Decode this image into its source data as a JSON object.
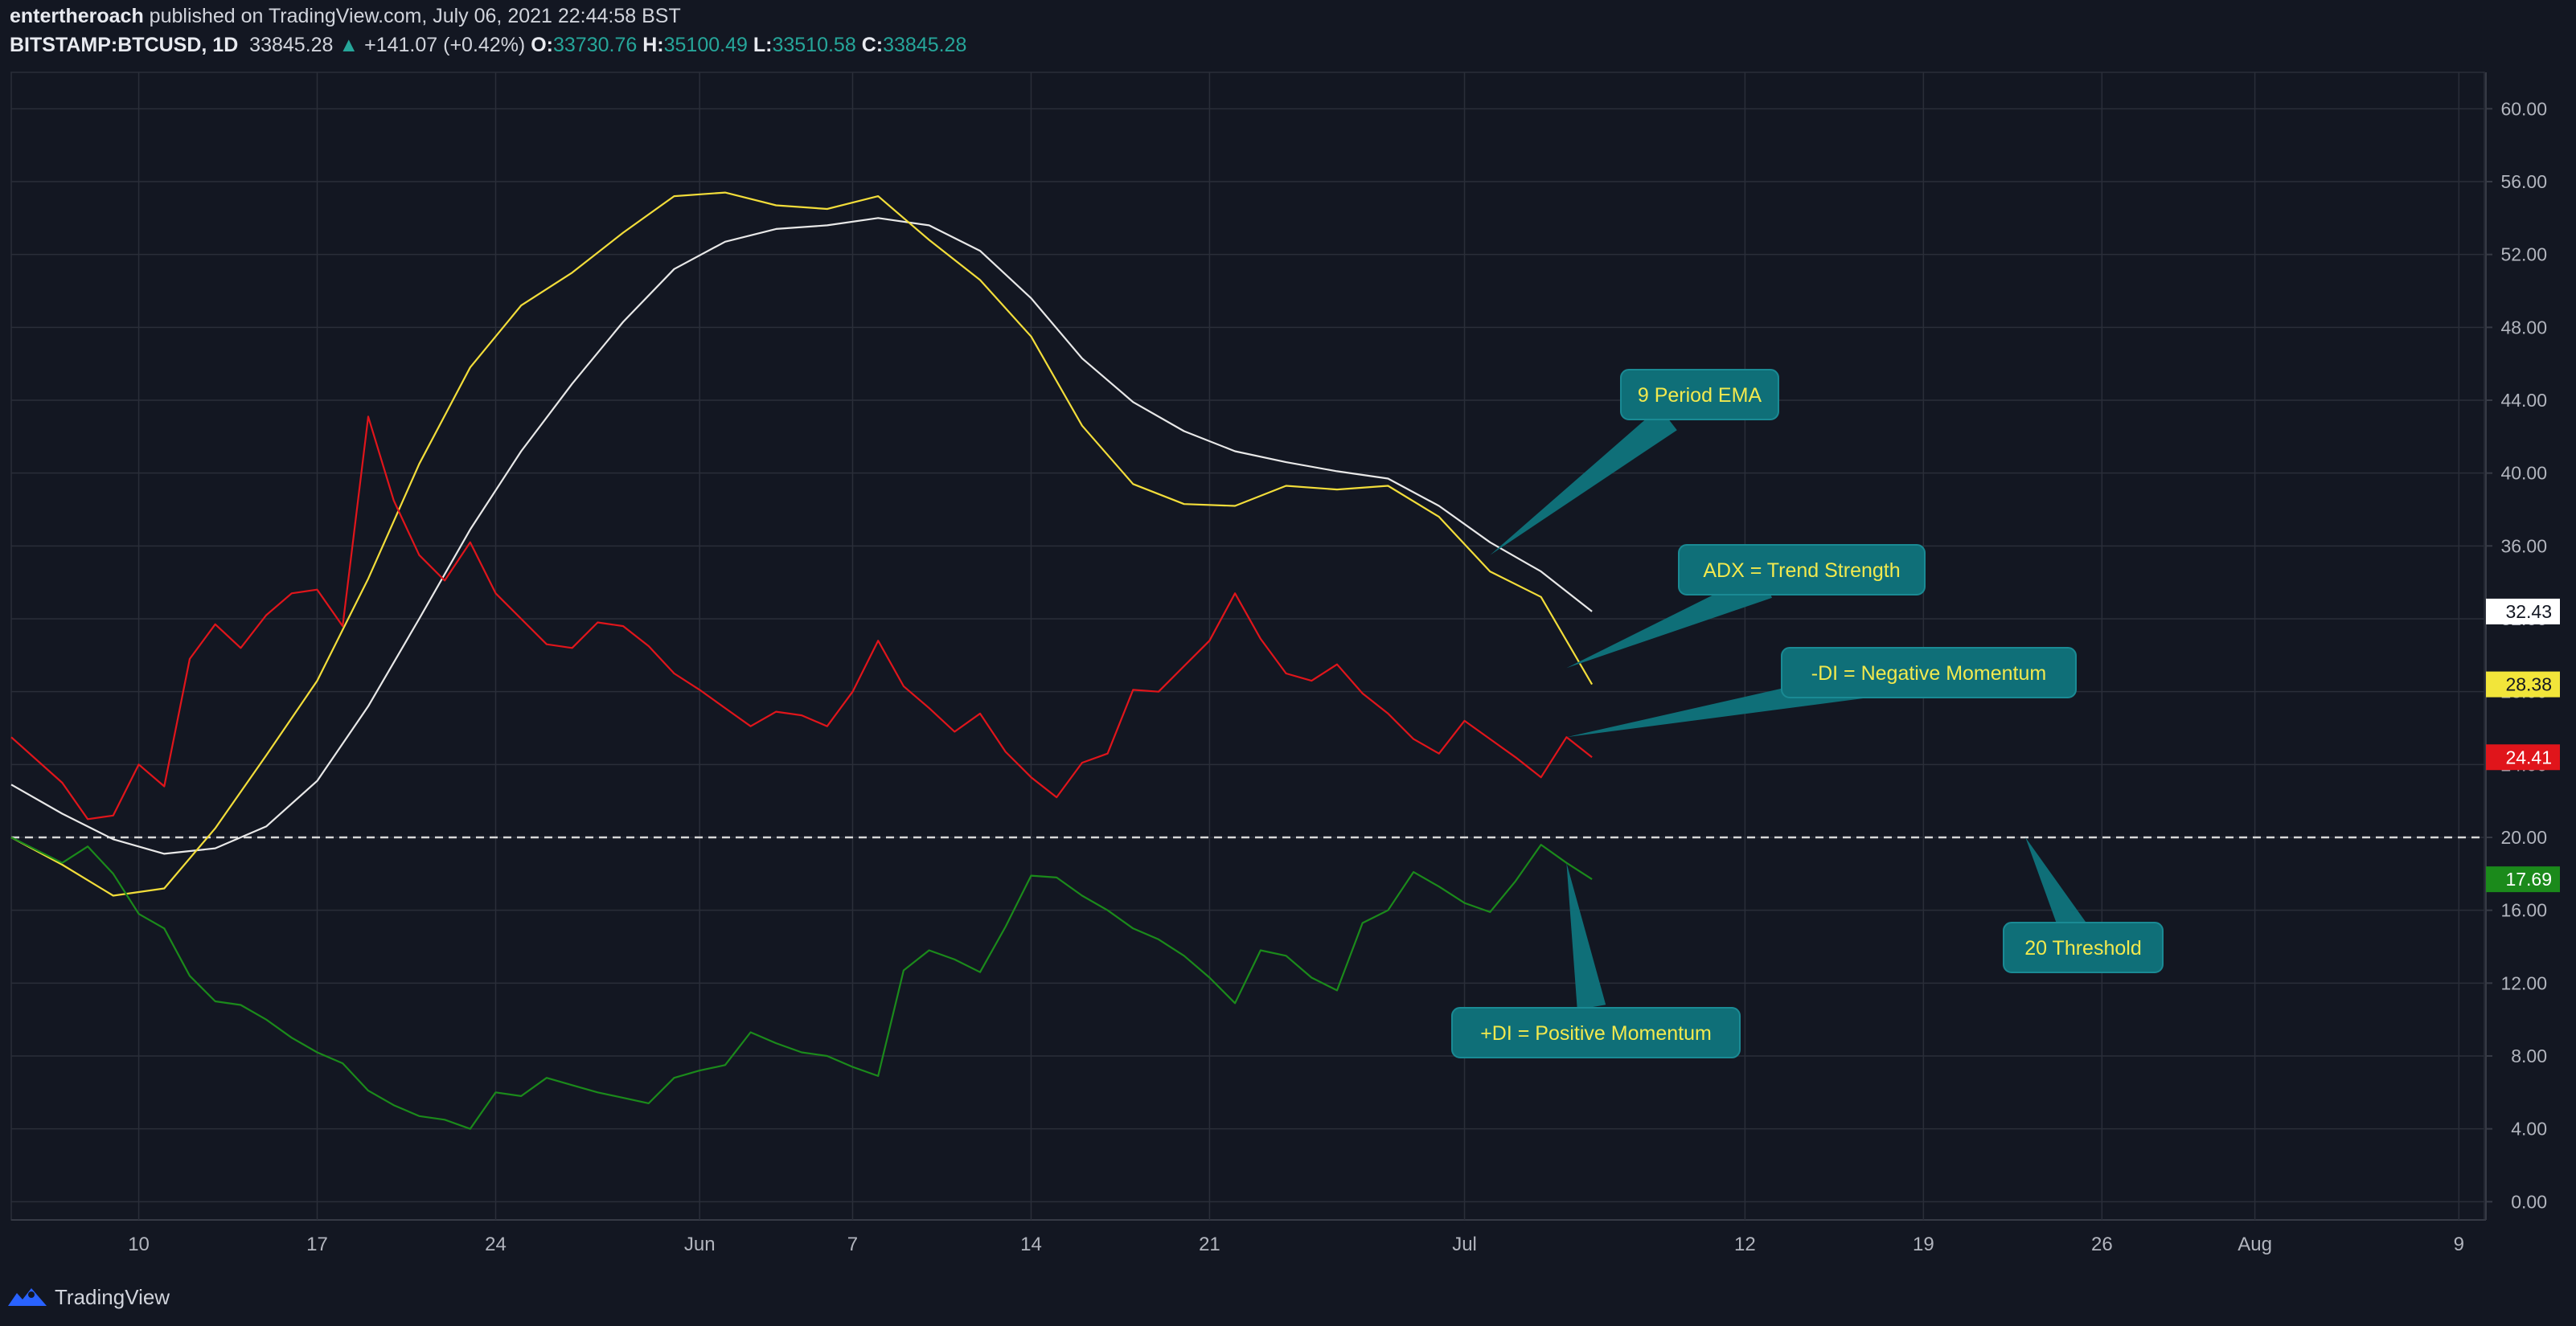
{
  "header": {
    "author": "entertheroach",
    "published_text": "published on TradingView.com, July 06, 2021 22:44:58 BST",
    "symbol": "BITSTAMP:BTCUSD, 1D",
    "last": "33845.28",
    "change_arrow": "▲",
    "change": "+141.07 (+0.42%)",
    "o_label": "O:",
    "o_value": "33730.76",
    "h_label": "H:",
    "h_value": "35100.49",
    "l_label": "L:",
    "l_value": "33510.58",
    "c_label": "C:",
    "c_value": "33845.28"
  },
  "footer": {
    "brand": "TradingView",
    "logo_icon": "tradingview-logo-icon"
  },
  "colors": {
    "background": "#131722",
    "grid": "#2a2e39",
    "text": "#b2b5be",
    "ema": "#e8e8e8",
    "adx": "#f2dd3a",
    "minus_di": "#e0151b",
    "plus_di": "#1b8a1b",
    "threshold": "#d8d8d8",
    "callout_bg": "#0f6f78",
    "callout_text": "#f2e94e"
  },
  "chart_data": {
    "type": "line",
    "x_axis": {
      "ticks": [
        {
          "date": "2021-05-10",
          "label": "10"
        },
        {
          "date": "2021-05-17",
          "label": "17"
        },
        {
          "date": "2021-05-24",
          "label": "24"
        },
        {
          "date": "2021-06-01",
          "label": "Jun"
        },
        {
          "date": "2021-06-07",
          "label": "7"
        },
        {
          "date": "2021-06-14",
          "label": "14"
        },
        {
          "date": "2021-06-21",
          "label": "21"
        },
        {
          "date": "2021-07-01",
          "label": "Jul"
        },
        {
          "date": "2021-07-12",
          "label": "12"
        },
        {
          "date": "2021-07-19",
          "label": "19"
        },
        {
          "date": "2021-07-26",
          "label": "26"
        },
        {
          "date": "2021-08-01",
          "label": "Aug"
        },
        {
          "date": "2021-08-09",
          "label": "9"
        }
      ],
      "range": [
        "2021-05-05",
        "2021-08-10"
      ]
    },
    "y_axis": {
      "ticks": [
        "0.00",
        "4.00",
        "8.00",
        "12.00",
        "16.00",
        "20.00",
        "24.00",
        "28.00",
        "32.00",
        "36.00",
        "40.00",
        "44.00",
        "48.00",
        "52.00",
        "56.00",
        "60.00"
      ],
      "range": [
        -1,
        62
      ]
    },
    "grid": true,
    "threshold": {
      "value": 20,
      "style": "dashed"
    },
    "series": [
      {
        "key": "ema",
        "color_key": "ema",
        "last_label": "32.43",
        "points": [
          [
            "2021-05-05",
            22.9
          ],
          [
            "2021-05-07",
            21.3
          ],
          [
            "2021-05-09",
            19.9
          ],
          [
            "2021-05-11",
            19.1
          ],
          [
            "2021-05-13",
            19.4
          ],
          [
            "2021-05-15",
            20.6
          ],
          [
            "2021-05-17",
            23.1
          ],
          [
            "2021-05-19",
            27.2
          ],
          [
            "2021-05-21",
            32.0
          ],
          [
            "2021-05-23",
            36.9
          ],
          [
            "2021-05-25",
            41.2
          ],
          [
            "2021-05-27",
            44.9
          ],
          [
            "2021-05-29",
            48.3
          ],
          [
            "2021-05-31",
            51.2
          ],
          [
            "2021-06-02",
            52.7
          ],
          [
            "2021-06-04",
            53.4
          ],
          [
            "2021-06-06",
            53.6
          ],
          [
            "2021-06-08",
            54.0
          ],
          [
            "2021-06-10",
            53.6
          ],
          [
            "2021-06-12",
            52.2
          ],
          [
            "2021-06-14",
            49.6
          ],
          [
            "2021-06-16",
            46.3
          ],
          [
            "2021-06-18",
            43.9
          ],
          [
            "2021-06-20",
            42.3
          ],
          [
            "2021-06-22",
            41.2
          ],
          [
            "2021-06-24",
            40.6
          ],
          [
            "2021-06-26",
            40.1
          ],
          [
            "2021-06-28",
            39.7
          ],
          [
            "2021-06-30",
            38.2
          ],
          [
            "2021-07-02",
            36.2
          ],
          [
            "2021-07-04",
            34.6
          ],
          [
            "2021-07-06",
            32.4
          ]
        ]
      },
      {
        "key": "adx",
        "color_key": "adx",
        "last_label": "28.38",
        "points": [
          [
            "2021-05-05",
            20.0
          ],
          [
            "2021-05-07",
            18.5
          ],
          [
            "2021-05-09",
            16.8
          ],
          [
            "2021-05-11",
            17.2
          ],
          [
            "2021-05-13",
            20.5
          ],
          [
            "2021-05-15",
            24.5
          ],
          [
            "2021-05-17",
            28.6
          ],
          [
            "2021-05-19",
            34.2
          ],
          [
            "2021-05-21",
            40.5
          ],
          [
            "2021-05-23",
            45.8
          ],
          [
            "2021-05-25",
            49.2
          ],
          [
            "2021-05-27",
            51.0
          ],
          [
            "2021-05-29",
            53.2
          ],
          [
            "2021-05-31",
            55.2
          ],
          [
            "2021-06-02",
            55.4
          ],
          [
            "2021-06-04",
            54.7
          ],
          [
            "2021-06-06",
            54.5
          ],
          [
            "2021-06-08",
            55.2
          ],
          [
            "2021-06-10",
            52.8
          ],
          [
            "2021-06-12",
            50.6
          ],
          [
            "2021-06-14",
            47.5
          ],
          [
            "2021-06-16",
            42.6
          ],
          [
            "2021-06-18",
            39.4
          ],
          [
            "2021-06-20",
            38.3
          ],
          [
            "2021-06-22",
            38.2
          ],
          [
            "2021-06-24",
            39.3
          ],
          [
            "2021-06-26",
            39.1
          ],
          [
            "2021-06-28",
            39.3
          ],
          [
            "2021-06-30",
            37.6
          ],
          [
            "2021-07-02",
            34.6
          ],
          [
            "2021-07-04",
            33.2
          ],
          [
            "2021-07-06",
            28.4
          ]
        ]
      },
      {
        "key": "minus_di",
        "color_key": "minus_di",
        "last_label": "24.41",
        "points": [
          [
            "2021-05-05",
            25.5
          ],
          [
            "2021-05-07",
            23.0
          ],
          [
            "2021-05-08",
            21.0
          ],
          [
            "2021-05-09",
            21.2
          ],
          [
            "2021-05-10",
            24.0
          ],
          [
            "2021-05-11",
            22.8
          ],
          [
            "2021-05-12",
            29.8
          ],
          [
            "2021-05-13",
            31.7
          ],
          [
            "2021-05-14",
            30.4
          ],
          [
            "2021-05-15",
            32.2
          ],
          [
            "2021-05-16",
            33.4
          ],
          [
            "2021-05-17",
            33.6
          ],
          [
            "2021-05-18",
            31.6
          ],
          [
            "2021-05-19",
            43.1
          ],
          [
            "2021-05-20",
            38.5
          ],
          [
            "2021-05-21",
            35.5
          ],
          [
            "2021-05-22",
            34.1
          ],
          [
            "2021-05-23",
            36.2
          ],
          [
            "2021-05-24",
            33.4
          ],
          [
            "2021-05-25",
            32.0
          ],
          [
            "2021-05-26",
            30.6
          ],
          [
            "2021-05-27",
            30.4
          ],
          [
            "2021-05-28",
            31.8
          ],
          [
            "2021-05-29",
            31.6
          ],
          [
            "2021-05-30",
            30.5
          ],
          [
            "2021-05-31",
            29.0
          ],
          [
            "2021-06-01",
            28.1
          ],
          [
            "2021-06-02",
            27.1
          ],
          [
            "2021-06-03",
            26.1
          ],
          [
            "2021-06-04",
            26.9
          ],
          [
            "2021-06-05",
            26.7
          ],
          [
            "2021-06-06",
            26.1
          ],
          [
            "2021-06-07",
            28.0
          ],
          [
            "2021-06-08",
            30.8
          ],
          [
            "2021-06-09",
            28.3
          ],
          [
            "2021-06-10",
            27.1
          ],
          [
            "2021-06-11",
            25.8
          ],
          [
            "2021-06-12",
            26.8
          ],
          [
            "2021-06-13",
            24.7
          ],
          [
            "2021-06-14",
            23.3
          ],
          [
            "2021-06-15",
            22.2
          ],
          [
            "2021-06-16",
            24.1
          ],
          [
            "2021-06-17",
            24.6
          ],
          [
            "2021-06-18",
            28.1
          ],
          [
            "2021-06-19",
            28.0
          ],
          [
            "2021-06-20",
            29.4
          ],
          [
            "2021-06-21",
            30.8
          ],
          [
            "2021-06-22",
            33.4
          ],
          [
            "2021-06-23",
            30.9
          ],
          [
            "2021-06-24",
            29.0
          ],
          [
            "2021-06-25",
            28.6
          ],
          [
            "2021-06-26",
            29.5
          ],
          [
            "2021-06-27",
            27.9
          ],
          [
            "2021-06-28",
            26.8
          ],
          [
            "2021-06-29",
            25.4
          ],
          [
            "2021-06-30",
            24.6
          ],
          [
            "2021-07-01",
            26.4
          ],
          [
            "2021-07-02",
            25.4
          ],
          [
            "2021-07-03",
            24.4
          ],
          [
            "2021-07-04",
            23.3
          ],
          [
            "2021-07-05",
            25.5
          ],
          [
            "2021-07-06",
            24.4
          ]
        ]
      },
      {
        "key": "plus_di",
        "color_key": "plus_di",
        "last_label": "17.69",
        "points": [
          [
            "2021-05-05",
            20.0
          ],
          [
            "2021-05-07",
            18.6
          ],
          [
            "2021-05-08",
            19.5
          ],
          [
            "2021-05-09",
            18.0
          ],
          [
            "2021-05-10",
            15.8
          ],
          [
            "2021-05-11",
            15.0
          ],
          [
            "2021-05-12",
            12.4
          ],
          [
            "2021-05-13",
            11.0
          ],
          [
            "2021-05-14",
            10.8
          ],
          [
            "2021-05-15",
            10.0
          ],
          [
            "2021-05-16",
            9.0
          ],
          [
            "2021-05-17",
            8.2
          ],
          [
            "2021-05-18",
            7.6
          ],
          [
            "2021-05-19",
            6.1
          ],
          [
            "2021-05-20",
            5.3
          ],
          [
            "2021-05-21",
            4.7
          ],
          [
            "2021-05-22",
            4.5
          ],
          [
            "2021-05-23",
            4.0
          ],
          [
            "2021-05-24",
            6.0
          ],
          [
            "2021-05-25",
            5.8
          ],
          [
            "2021-05-26",
            6.8
          ],
          [
            "2021-05-27",
            6.4
          ],
          [
            "2021-05-28",
            6.0
          ],
          [
            "2021-05-29",
            5.7
          ],
          [
            "2021-05-30",
            5.4
          ],
          [
            "2021-05-31",
            6.8
          ],
          [
            "2021-06-01",
            7.2
          ],
          [
            "2021-06-02",
            7.5
          ],
          [
            "2021-06-03",
            9.3
          ],
          [
            "2021-06-04",
            8.7
          ],
          [
            "2021-06-05",
            8.2
          ],
          [
            "2021-06-06",
            8.0
          ],
          [
            "2021-06-07",
            7.4
          ],
          [
            "2021-06-08",
            6.9
          ],
          [
            "2021-06-09",
            12.7
          ],
          [
            "2021-06-10",
            13.8
          ],
          [
            "2021-06-11",
            13.3
          ],
          [
            "2021-06-12",
            12.6
          ],
          [
            "2021-06-13",
            15.1
          ],
          [
            "2021-06-14",
            17.9
          ],
          [
            "2021-06-15",
            17.8
          ],
          [
            "2021-06-16",
            16.8
          ],
          [
            "2021-06-17",
            16.0
          ],
          [
            "2021-06-18",
            15.0
          ],
          [
            "2021-06-19",
            14.4
          ],
          [
            "2021-06-20",
            13.5
          ],
          [
            "2021-06-21",
            12.3
          ],
          [
            "2021-06-22",
            10.9
          ],
          [
            "2021-06-23",
            13.8
          ],
          [
            "2021-06-24",
            13.5
          ],
          [
            "2021-06-25",
            12.3
          ],
          [
            "2021-06-26",
            11.6
          ],
          [
            "2021-06-27",
            15.3
          ],
          [
            "2021-06-28",
            16.0
          ],
          [
            "2021-06-29",
            18.1
          ],
          [
            "2021-06-30",
            17.3
          ],
          [
            "2021-07-01",
            16.4
          ],
          [
            "2021-07-02",
            15.9
          ],
          [
            "2021-07-03",
            17.6
          ],
          [
            "2021-07-04",
            19.6
          ],
          [
            "2021-07-05",
            18.6
          ],
          [
            "2021-07-06",
            17.7
          ]
        ]
      }
    ],
    "annotations": [
      {
        "name": "annotation-9-period-ema",
        "text": "9 Period EMA",
        "anchor": [
          "2021-07-02",
          35.5
        ]
      },
      {
        "name": "annotation-adx",
        "text": "ADX = Trend Strength",
        "anchor": [
          "2021-07-05",
          29.3
        ]
      },
      {
        "name": "annotation-minus-di",
        "text": "-DI = Negative Momentum",
        "anchor": [
          "2021-07-05",
          25.5
        ]
      },
      {
        "name": "annotation-threshold",
        "text": "20 Threshold",
        "anchor": [
          "2021-07-23",
          20.0
        ]
      },
      {
        "name": "annotation-plus-di",
        "text": "+DI = Positive Momentum",
        "anchor": [
          "2021-07-05",
          18.6
        ]
      }
    ]
  }
}
